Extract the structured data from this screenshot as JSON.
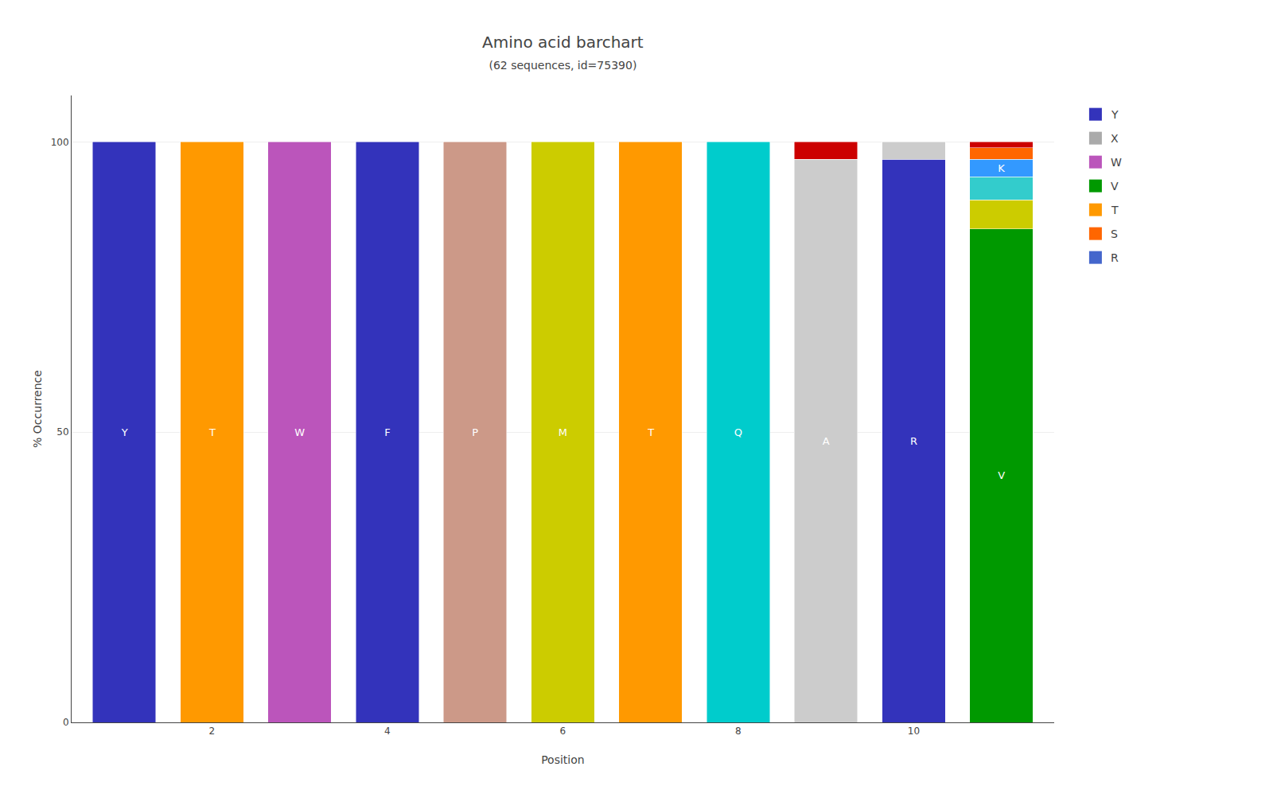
{
  "chart_data": {
    "type": "bar",
    "title": "Amino acid barchart",
    "subtitle": "(62 sequences, id=75390)",
    "xlabel": "Position",
    "ylabel": "% Occurrence",
    "x": [
      1,
      2,
      3,
      4,
      5,
      6,
      7,
      8,
      9,
      10,
      11
    ],
    "stacked": true,
    "series": [
      {
        "values": [
          100,
          100,
          100,
          100,
          100,
          100,
          100,
          100,
          97,
          97,
          85
        ],
        "colors": [
          "#3333bb",
          "#ff9900",
          "#bb55bb",
          "#3333bb",
          "#cc9988",
          "#cccc00",
          "#ff9900",
          "#00cccc",
          "#cccccc",
          "#3333bb",
          "#009900"
        ],
        "labels": [
          "Y",
          "T",
          "W",
          "F",
          "P",
          "M",
          "T",
          "Q",
          "A",
          "R",
          "V"
        ]
      },
      {
        "values": [
          null,
          null,
          null,
          null,
          null,
          null,
          null,
          null,
          3,
          3,
          5
        ],
        "colors": [
          null,
          null,
          null,
          null,
          null,
          null,
          null,
          null,
          "#cc0000",
          "#cccccc",
          "#cccc00"
        ]
      },
      {
        "values": [
          null,
          null,
          null,
          null,
          null,
          null,
          null,
          null,
          null,
          null,
          4
        ],
        "colors": [
          null,
          null,
          null,
          null,
          null,
          null,
          null,
          null,
          null,
          null,
          "#33cccc"
        ]
      },
      {
        "values": [
          null,
          null,
          null,
          null,
          null,
          null,
          null,
          null,
          null,
          null,
          3
        ],
        "colors": [
          null,
          null,
          null,
          null,
          null,
          null,
          null,
          null,
          null,
          null,
          "#3399ff"
        ],
        "labels": [
          null,
          null,
          null,
          null,
          null,
          null,
          null,
          null,
          null,
          null,
          "K"
        ]
      },
      {
        "values": [
          null,
          null,
          null,
          null,
          null,
          null,
          null,
          null,
          null,
          null,
          2
        ],
        "colors": [
          null,
          null,
          null,
          null,
          null,
          null,
          null,
          null,
          null,
          null,
          "#ff6600"
        ]
      },
      {
        "values": [
          null,
          null,
          null,
          null,
          null,
          null,
          null,
          null,
          null,
          null,
          1
        ],
        "colors": [
          null,
          null,
          null,
          null,
          null,
          null,
          null,
          null,
          null,
          null,
          "#cc0000"
        ]
      }
    ],
    "xlim": [
      0.4,
      11.6
    ],
    "xticks": [
      2,
      4,
      6,
      8,
      10
    ],
    "ylim": [
      0,
      108
    ],
    "yticks": [
      0,
      50,
      100
    ],
    "grid": "y",
    "legend_items": [
      {
        "name": "Y",
        "color": "#3333bb"
      },
      {
        "name": "X",
        "color": "#aaaaaa"
      },
      {
        "name": "W",
        "color": "#bb55bb"
      },
      {
        "name": "V",
        "color": "#009900"
      },
      {
        "name": "T",
        "color": "#ff9900"
      },
      {
        "name": "S",
        "color": "#ff6600"
      },
      {
        "name": "R",
        "color": "#4466cc"
      }
    ]
  }
}
